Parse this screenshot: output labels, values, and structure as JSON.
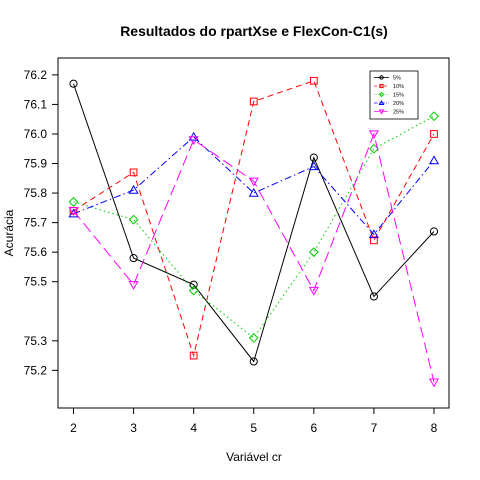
{
  "chart_data": {
    "type": "line",
    "title": "Resultados do rpartXse e FlexCon-C1(s)",
    "xlabel": "Variável cr",
    "ylabel": "Acurácia",
    "x": [
      2,
      3,
      4,
      5,
      6,
      7,
      8
    ],
    "xlim": [
      2,
      8
    ],
    "ylim": [
      75.12,
      76.23
    ],
    "xticks": [
      2,
      3,
      4,
      5,
      6,
      7,
      8
    ],
    "yticks": [
      75.2,
      75.3,
      75.5,
      75.6,
      75.7,
      75.8,
      75.9,
      76.0,
      76.1,
      76.2
    ],
    "ytick_labels": [
      "75.2",
      "75.3",
      "75.5",
      "75.6",
      "75.7",
      "75.8",
      "75.9",
      "76.0",
      "76.1",
      "76.2"
    ],
    "grid": false,
    "legend_position": "top-right",
    "series": [
      {
        "name": "5%",
        "values": [
          76.17,
          75.58,
          75.49,
          75.23,
          75.92,
          75.45,
          75.67
        ],
        "color": "#000000",
        "marker": "circle",
        "dash": ""
      },
      {
        "name": "10%",
        "values": [
          75.74,
          75.87,
          75.25,
          76.11,
          76.18,
          75.64,
          76.0
        ],
        "color": "#ff0000",
        "marker": "square",
        "dash": "6,4"
      },
      {
        "name": "15%",
        "values": [
          75.77,
          75.71,
          75.47,
          75.31,
          75.6,
          75.95,
          76.06
        ],
        "color": "#00cd00",
        "marker": "diamond",
        "dash": "1.5,3"
      },
      {
        "name": "20%",
        "values": [
          75.73,
          75.81,
          75.99,
          75.8,
          75.89,
          75.66,
          75.91
        ],
        "color": "#0000ff",
        "marker": "triangle-up",
        "dash": "7,3,1.5,3"
      },
      {
        "name": "25%",
        "values": [
          75.74,
          75.49,
          75.98,
          75.84,
          75.47,
          76.0,
          75.16
        ],
        "color": "#ff00ff",
        "marker": "triangle-down",
        "dash": "11,5"
      }
    ]
  }
}
